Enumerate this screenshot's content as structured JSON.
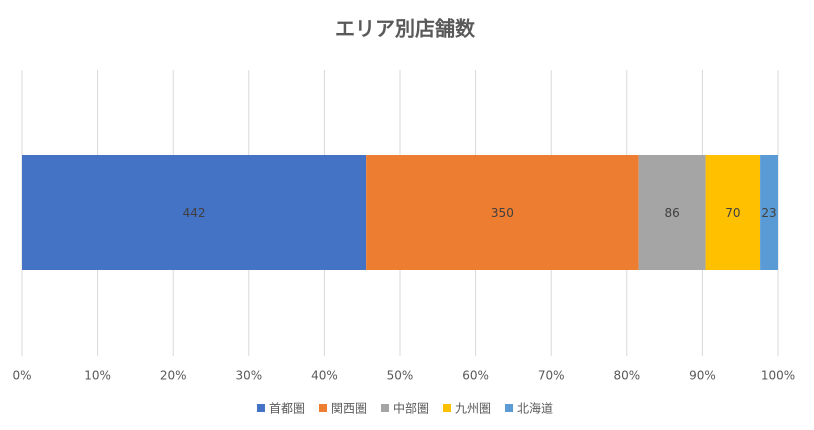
{
  "chart_data": {
    "type": "bar",
    "orientation": "horizontal",
    "stacking": "percent",
    "title": "エリア別店舗数",
    "series": [
      {
        "name": "首都圏",
        "color": "#4472c4",
        "values": [
          442
        ]
      },
      {
        "name": "関西圏",
        "color": "#ed7d31",
        "values": [
          350
        ]
      },
      {
        "name": "中部圏",
        "color": "#a5a5a5",
        "values": [
          86
        ]
      },
      {
        "name": "九州圏",
        "color": "#ffc000",
        "values": [
          70
        ]
      },
      {
        "name": "北海道",
        "color": "#5b9bd5",
        "values": [
          23
        ]
      }
    ],
    "xlim": [
      0,
      100
    ],
    "xticks": [
      {
        "value": 0,
        "label": "0%"
      },
      {
        "value": 10,
        "label": "10%"
      },
      {
        "value": 20,
        "label": "20%"
      },
      {
        "value": 30,
        "label": "30%"
      },
      {
        "value": 40,
        "label": "40%"
      },
      {
        "value": 50,
        "label": "50%"
      },
      {
        "value": 60,
        "label": "60%"
      },
      {
        "value": 70,
        "label": "70%"
      },
      {
        "value": 80,
        "label": "80%"
      },
      {
        "value": 90,
        "label": "90%"
      },
      {
        "value": 100,
        "label": "100%"
      }
    ],
    "grid": true,
    "legend": "bottom"
  }
}
